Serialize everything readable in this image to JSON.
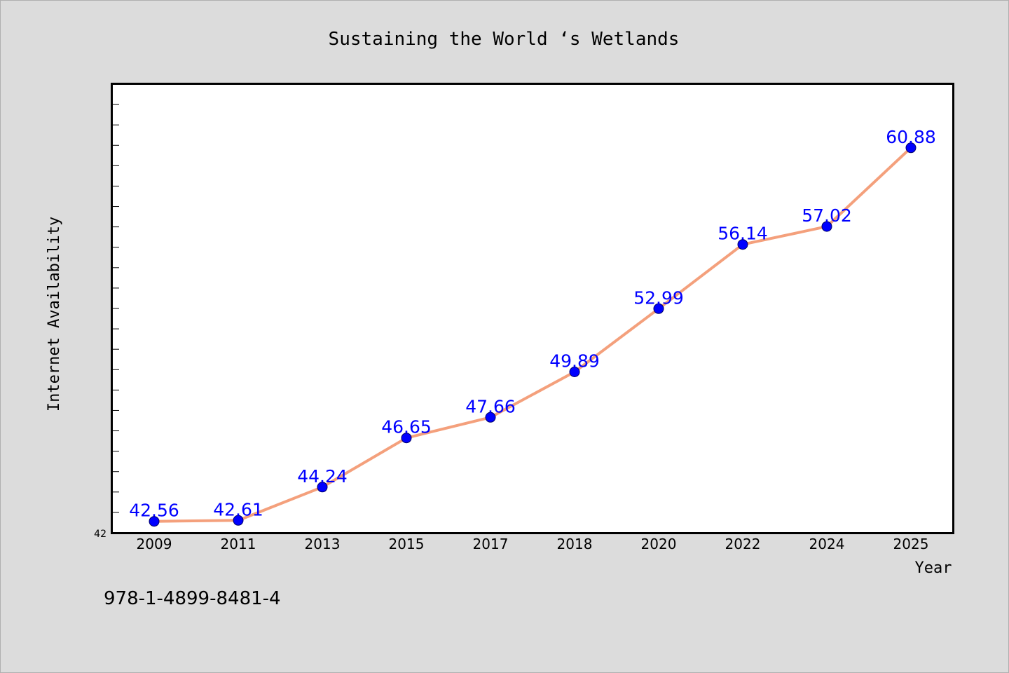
{
  "chart_data": {
    "type": "line",
    "title": "Sustaining the World ‘s Wetlands",
    "xlabel": "Year",
    "ylabel": "Internet Availability",
    "categories": [
      "2009",
      "2011",
      "2013",
      "2015",
      "2017",
      "2018",
      "2020",
      "2022",
      "2024",
      "2025"
    ],
    "series": [
      {
        "values": [
          42.56,
          42.61,
          44.24,
          46.65,
          47.66,
          49.89,
          52.99,
          56.14,
          57.02,
          60.88
        ],
        "data_labels": [
          "42.56",
          "42.61",
          "44.24",
          "46.65",
          "47.66",
          "49.89",
          "52.99",
          "56.14",
          "57.02",
          "60.88"
        ]
      }
    ],
    "ylim": [
      42,
      64
    ],
    "y_tick_label": "42",
    "grid": false,
    "line_color": "#f4a07c",
    "marker_color": "#0000ff",
    "label_color": "#0000ff"
  },
  "footer": {
    "isbn": "978-1-4899-8481-4"
  }
}
